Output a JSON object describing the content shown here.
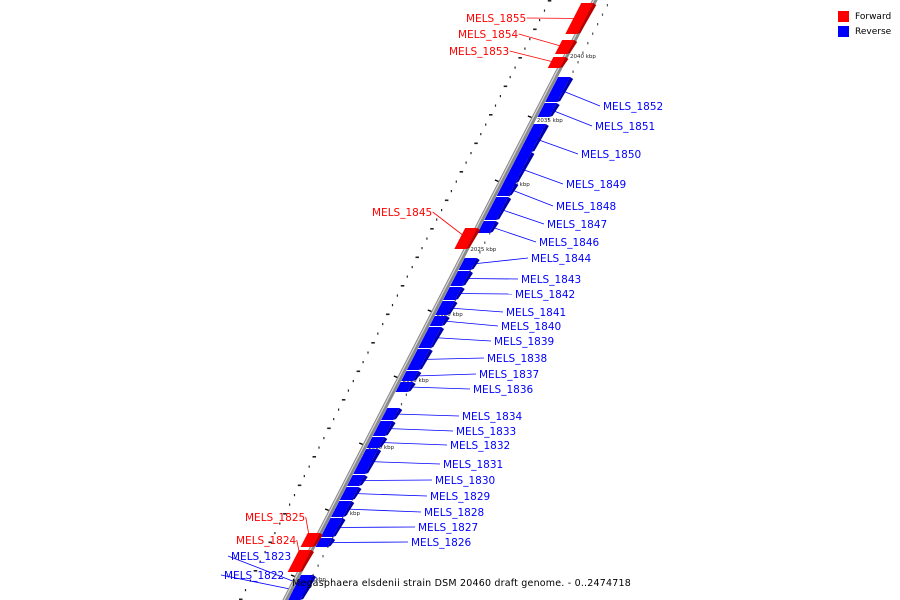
{
  "caption": "Megasphaera elsdenii strain DSM 20460 draft genome. - 0..2474718",
  "legend": [
    {
      "label": "Forward",
      "color": "#ff0000"
    },
    {
      "label": "Reverse",
      "color": "#0000ff"
    }
  ],
  "colors": {
    "forward": "#ff0000",
    "reverse": "#0000ff",
    "backbone": "#7a7a7a"
  },
  "ruler": [
    {
      "label": "2040 kbp",
      "kbp": 2040
    },
    {
      "label": "2035 kbp",
      "kbp": 2035
    },
    {
      "label": "2030 kbp",
      "kbp": 2030
    },
    {
      "label": "2025 kbp",
      "kbp": 2025
    },
    {
      "label": "2020 kbp",
      "kbp": 2020
    },
    {
      "label": "2015 kbp",
      "kbp": 2015
    },
    {
      "label": "2010 kbp",
      "kbp": 2010
    },
    {
      "label": "2005 kbp",
      "kbp": 2005
    },
    {
      "label": "2000 kbp",
      "kbp": 2000
    }
  ],
  "genes": [
    {
      "name": "MELS_1855",
      "strand": "forward"
    },
    {
      "name": "MELS_1854",
      "strand": "forward"
    },
    {
      "name": "MELS_1853",
      "strand": "forward"
    },
    {
      "name": "MELS_1852",
      "strand": "reverse"
    },
    {
      "name": "MELS_1851",
      "strand": "reverse"
    },
    {
      "name": "MELS_1850",
      "strand": "reverse"
    },
    {
      "name": "MELS_1849",
      "strand": "reverse"
    },
    {
      "name": "MELS_1848",
      "strand": "reverse"
    },
    {
      "name": "MELS_1847",
      "strand": "reverse"
    },
    {
      "name": "MELS_1846",
      "strand": "reverse"
    },
    {
      "name": "MELS_1845",
      "strand": "forward"
    },
    {
      "name": "MELS_1844",
      "strand": "reverse"
    },
    {
      "name": "MELS_1843",
      "strand": "reverse"
    },
    {
      "name": "MELS_1842",
      "strand": "reverse"
    },
    {
      "name": "MELS_1841",
      "strand": "reverse"
    },
    {
      "name": "MELS_1840",
      "strand": "reverse"
    },
    {
      "name": "MELS_1839",
      "strand": "reverse"
    },
    {
      "name": "MELS_1838",
      "strand": "reverse"
    },
    {
      "name": "MELS_1837",
      "strand": "reverse"
    },
    {
      "name": "MELS_1836",
      "strand": "reverse"
    },
    {
      "name": "MELS_1834",
      "strand": "reverse"
    },
    {
      "name": "MELS_1833",
      "strand": "reverse"
    },
    {
      "name": "MELS_1832",
      "strand": "reverse"
    },
    {
      "name": "MELS_1831",
      "strand": "reverse"
    },
    {
      "name": "MELS_1830",
      "strand": "reverse"
    },
    {
      "name": "MELS_1829",
      "strand": "reverse"
    },
    {
      "name": "MELS_1828",
      "strand": "reverse"
    },
    {
      "name": "MELS_1827",
      "strand": "reverse"
    },
    {
      "name": "MELS_1826",
      "strand": "reverse"
    },
    {
      "name": "MELS_1825",
      "strand": "forward"
    },
    {
      "name": "MELS_1824",
      "strand": "forward"
    },
    {
      "name": "MELS_1823",
      "strand": "reverse"
    },
    {
      "name": "MELS_1822",
      "strand": "reverse"
    }
  ]
}
